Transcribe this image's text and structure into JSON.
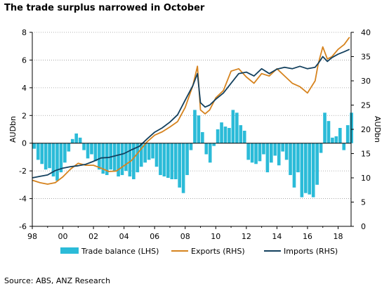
{
  "chart_data": {
    "type": "bar+line",
    "title": "The trade surplus narrowed in October",
    "source": "Source: ABS, ANZ Research",
    "x_ticks": [
      "98",
      "00",
      "02",
      "04",
      "06",
      "08",
      "10",
      "12",
      "14",
      "16",
      "18"
    ],
    "x_range": [
      1998,
      2018.85
    ],
    "y_left": {
      "label": "AUDbn",
      "range": [
        -6,
        8
      ],
      "ticks": [
        "-6",
        "-4",
        "-2",
        "0",
        "2",
        "4",
        "6",
        "8"
      ]
    },
    "y_right": {
      "label": "AUDbn",
      "range": [
        0,
        40
      ],
      "ticks": [
        "0",
        "5",
        "10",
        "15",
        "20",
        "25",
        "30",
        "35",
        "40"
      ]
    },
    "grid": true,
    "legend_position": "bottom",
    "series": [
      {
        "name": "Trade balance (LHS)",
        "type": "bar",
        "axis": "left",
        "color": "#2bbbd8",
        "x": [
          1998.0,
          1998.25,
          1998.5,
          1998.75,
          1999.0,
          1999.25,
          1999.5,
          1999.75,
          2000.0,
          2000.25,
          2000.5,
          2000.75,
          2001.0,
          2001.25,
          2001.5,
          2001.75,
          2002.0,
          2002.25,
          2002.5,
          2002.75,
          2003.0,
          2003.25,
          2003.5,
          2003.75,
          2004.0,
          2004.25,
          2004.5,
          2004.75,
          2005.0,
          2005.25,
          2005.5,
          2005.75,
          2006.0,
          2006.25,
          2006.5,
          2006.75,
          2007.0,
          2007.25,
          2007.5,
          2007.75,
          2008.0,
          2008.25,
          2008.5,
          2008.75,
          2009.0,
          2009.25,
          2009.5,
          2009.75,
          2010.0,
          2010.25,
          2010.5,
          2010.75,
          2011.0,
          2011.25,
          2011.5,
          2011.75,
          2012.0,
          2012.25,
          2012.5,
          2012.75,
          2013.0,
          2013.25,
          2013.5,
          2013.75,
          2014.0,
          2014.25,
          2014.5,
          2014.75,
          2015.0,
          2015.25,
          2015.5,
          2015.75,
          2016.0,
          2016.25,
          2016.5,
          2016.75,
          2017.0,
          2017.25,
          2017.5,
          2017.75,
          2018.0,
          2018.25,
          2018.5,
          2018.75
        ],
        "values": [
          -0.4,
          -1.2,
          -1.5,
          -1.9,
          -1.8,
          -2.4,
          -2.7,
          -2.1,
          -1.4,
          -0.6,
          0.3,
          0.7,
          0.4,
          -0.5,
          -1.1,
          -0.8,
          -1.3,
          -1.9,
          -2.2,
          -2.3,
          -1.9,
          -2.0,
          -2.4,
          -2.3,
          -2.0,
          -2.4,
          -2.6,
          -2.1,
          -1.7,
          -1.4,
          -1.2,
          -1.1,
          -1.7,
          -2.3,
          -2.4,
          -2.5,
          -2.6,
          -2.6,
          -3.2,
          -3.6,
          -2.3,
          -0.5,
          2.4,
          2.0,
          0.8,
          -0.8,
          -1.4,
          -0.2,
          1.0,
          1.5,
          1.2,
          1.1,
          2.4,
          2.2,
          1.3,
          0.9,
          -1.2,
          -1.4,
          -1.5,
          -1.3,
          -0.8,
          -2.1,
          -1.4,
          -0.9,
          -1.6,
          -0.6,
          -1.2,
          -2.3,
          -3.2,
          -2.1,
          -3.9,
          -3.6,
          -3.7,
          -3.9,
          -3.0,
          -0.7,
          2.2,
          1.6,
          0.4,
          0.5,
          1.1,
          -0.5,
          1.3,
          2.2
        ]
      },
      {
        "name": "Exports (RHS)",
        "type": "line",
        "axis": "right",
        "color": "#d6831e",
        "x": [
          1998.0,
          1998.5,
          1999.0,
          1999.5,
          2000.0,
          2000.5,
          2001.0,
          2001.5,
          2002.0,
          2002.5,
          2003.0,
          2003.5,
          2004.0,
          2004.5,
          2005.0,
          2005.5,
          2006.0,
          2006.5,
          2007.0,
          2007.5,
          2008.0,
          2008.5,
          2008.8,
          2009.0,
          2009.3,
          2009.6,
          2010.0,
          2010.5,
          2011.0,
          2011.5,
          2012.0,
          2012.5,
          2013.0,
          2013.5,
          2014.0,
          2014.5,
          2015.0,
          2015.5,
          2016.0,
          2016.5,
          2016.7,
          2017.0,
          2017.3,
          2017.6,
          2018.0,
          2018.4,
          2018.75
        ],
        "values": [
          9.5,
          9.0,
          8.7,
          9.0,
          10.2,
          11.8,
          13.0,
          12.6,
          12.6,
          12.0,
          11.3,
          11.4,
          12.5,
          13.6,
          15.5,
          17.4,
          18.8,
          19.5,
          20.5,
          21.6,
          24.5,
          29.0,
          33.0,
          24.0,
          23.2,
          24.0,
          26.5,
          28.0,
          32.0,
          32.5,
          30.8,
          29.5,
          31.5,
          31.0,
          32.5,
          31.0,
          29.5,
          28.8,
          27.5,
          30.0,
          33.5,
          37.0,
          34.5,
          35.0,
          36.5,
          37.5,
          39.0
        ]
      },
      {
        "name": "Imports (RHS)",
        "type": "line",
        "axis": "right",
        "color": "#13405e",
        "x": [
          1998.0,
          1998.5,
          1999.0,
          1999.5,
          2000.0,
          2000.5,
          2001.0,
          2001.5,
          2002.0,
          2002.5,
          2003.0,
          2003.5,
          2004.0,
          2004.5,
          2005.0,
          2005.5,
          2006.0,
          2006.5,
          2007.0,
          2007.5,
          2008.0,
          2008.5,
          2008.8,
          2009.0,
          2009.3,
          2009.6,
          2010.0,
          2010.5,
          2011.0,
          2011.5,
          2012.0,
          2012.5,
          2013.0,
          2013.5,
          2014.0,
          2014.5,
          2015.0,
          2015.5,
          2016.0,
          2016.5,
          2016.7,
          2017.0,
          2017.3,
          2017.6,
          2018.0,
          2018.4,
          2018.75
        ],
        "values": [
          10.0,
          10.3,
          10.6,
          11.5,
          12.0,
          12.3,
          12.5,
          12.8,
          13.4,
          14.1,
          14.2,
          14.6,
          15.0,
          15.8,
          16.5,
          18.0,
          19.4,
          20.3,
          21.5,
          23.0,
          26.0,
          29.0,
          31.5,
          25.5,
          24.6,
          25.0,
          26.2,
          27.5,
          29.5,
          31.5,
          31.8,
          31.0,
          32.5,
          31.5,
          32.4,
          32.8,
          32.5,
          33.0,
          32.5,
          32.8,
          33.6,
          35.0,
          34.0,
          34.8,
          35.5,
          36.0,
          36.5
        ]
      }
    ]
  }
}
